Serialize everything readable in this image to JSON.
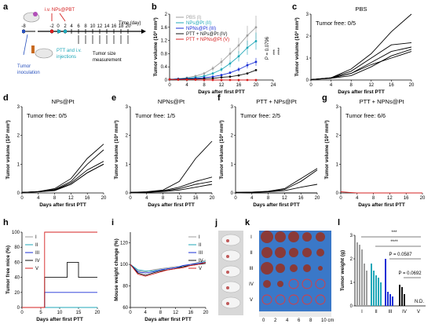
{
  "panel_labels": [
    "a",
    "b",
    "c",
    "d",
    "e",
    "f",
    "g",
    "h",
    "i",
    "j",
    "k",
    "l"
  ],
  "colors": {
    "PBS": "#9e9e9e",
    "NPs@Pt": "#1fa7b8",
    "NPNs@Pt": "#1a2fd6",
    "PTT+NPs@Pt": "#111111",
    "PTT+NPNs@Pt": "#d62020",
    "schedule_blue": "#2a52be",
    "schedule_red": "#d62020"
  },
  "schedule": {
    "time_label": "Time (day)",
    "inject_label": "i.v. NPs@PBT",
    "tumor_label": "Tumor\ninoculation",
    "ptt_label": "PTT and i.v.\ninjections",
    "measure_label": "Tumor size\nmeasurement",
    "ticks": [
      "-8",
      "-2",
      "0",
      "2",
      "4",
      "6",
      "8",
      "10",
      "12",
      "14",
      "16",
      "18",
      "20"
    ]
  },
  "chart_data": [
    {
      "panel": "b",
      "type": "line",
      "xlabel": "Days after first PTT",
      "ylabel": "Tumor volume (10³ mm³)",
      "xlim": [
        0,
        24
      ],
      "ylim": [
        0,
        2.0
      ],
      "xticks": [
        0,
        4,
        8,
        12,
        16,
        20,
        24
      ],
      "yticks": [
        0,
        0.4,
        0.8,
        1.2,
        1.6,
        2.0
      ],
      "annotations": [
        "P = 0.0796",
        "***",
        "****"
      ],
      "x": [
        0,
        2,
        4,
        6,
        8,
        10,
        12,
        14,
        16,
        18,
        20
      ],
      "series": [
        {
          "name": "PBS (I)",
          "color": "#9e9e9e",
          "values": [
            0.02,
            0.04,
            0.07,
            0.12,
            0.2,
            0.35,
            0.55,
            0.8,
            1.05,
            1.35,
            1.6
          ]
        },
        {
          "name": "NPs@Pt (II)",
          "color": "#1fa7b8",
          "values": [
            0.02,
            0.03,
            0.05,
            0.08,
            0.12,
            0.2,
            0.32,
            0.5,
            0.72,
            0.98,
            1.18
          ]
        },
        {
          "name": "NPNs@Pt (III)",
          "color": "#1a2fd6",
          "values": [
            0.02,
            0.03,
            0.04,
            0.05,
            0.07,
            0.1,
            0.15,
            0.22,
            0.32,
            0.45,
            0.55
          ]
        },
        {
          "name": "PTT + NPs@Pt (IV)",
          "color": "#111111",
          "values": [
            0.02,
            0.02,
            0.03,
            0.03,
            0.04,
            0.05,
            0.08,
            0.1,
            0.14,
            0.2,
            0.3
          ]
        },
        {
          "name": "PTT + NPNs@Pt (V)",
          "color": "#d62020",
          "values": [
            0.02,
            0.01,
            0.01,
            0.01,
            0.0,
            0.0,
            0.0,
            0.0,
            0.0,
            0.0,
            0.0
          ]
        }
      ]
    },
    {
      "panel": "c",
      "type": "line",
      "title": "PBS",
      "note": "Tumor free: 0/5",
      "xlabel": "Days after first PTT",
      "ylabel": "Tumor volume (10³ mm³)",
      "xlim": [
        0,
        20
      ],
      "ylim": [
        0,
        3
      ],
      "xticks": [
        0,
        4,
        8,
        12,
        16,
        20
      ],
      "yticks": [
        0,
        1,
        2,
        3
      ],
      "x": [
        0,
        4,
        8,
        12,
        16,
        20
      ],
      "series": [
        {
          "values": [
            0.02,
            0.1,
            0.5,
            1.2,
            2.2,
            3.0
          ]
        },
        {
          "values": [
            0.02,
            0.1,
            0.4,
            1.0,
            1.6,
            1.7
          ]
        },
        {
          "values": [
            0.02,
            0.1,
            0.3,
            0.8,
            1.3,
            1.5
          ]
        },
        {
          "values": [
            0.02,
            0.08,
            0.3,
            0.7,
            1.0,
            1.3
          ]
        },
        {
          "values": [
            0.02,
            0.08,
            0.2,
            0.6,
            1.1,
            1.4
          ]
        }
      ]
    },
    {
      "panel": "d",
      "type": "line",
      "title": "NPs@Pt",
      "note": "Tumor free: 0/5",
      "xlabel": "Days after first PTT",
      "ylabel": "Tumor volume (10³ mm³)",
      "xlim": [
        0,
        20
      ],
      "ylim": [
        0,
        3
      ],
      "xticks": [
        0,
        4,
        8,
        12,
        16,
        20
      ],
      "yticks": [
        0,
        1,
        2,
        3
      ],
      "x": [
        0,
        4,
        8,
        12,
        16,
        20
      ],
      "series": [
        {
          "values": [
            0.02,
            0.05,
            0.15,
            0.5,
            1.2,
            1.7
          ]
        },
        {
          "values": [
            0.02,
            0.05,
            0.12,
            0.4,
            1.0,
            1.5
          ]
        },
        {
          "values": [
            0.02,
            0.04,
            0.1,
            0.35,
            0.8,
            1.1
          ]
        },
        {
          "values": [
            0.02,
            0.04,
            0.1,
            0.3,
            0.7,
            1.0
          ]
        },
        {
          "values": [
            0.02,
            0.04,
            0.08,
            0.3,
            0.7,
            1.0
          ]
        }
      ]
    },
    {
      "panel": "e",
      "type": "line",
      "title": "NPNs@Pt",
      "note": "Tumor free: 1/5",
      "xlabel": "Days after first PTT",
      "ylabel": "Tumor volume (10³ mm³)",
      "xlim": [
        0,
        20
      ],
      "ylim": [
        0,
        3
      ],
      "xticks": [
        0,
        4,
        8,
        12,
        16,
        20
      ],
      "yticks": [
        0,
        1,
        2,
        3
      ],
      "x": [
        0,
        4,
        8,
        12,
        16,
        20
      ],
      "series": [
        {
          "values": [
            0.02,
            0.04,
            0.1,
            0.4,
            1.2,
            1.8
          ]
        },
        {
          "values": [
            0.02,
            0.03,
            0.08,
            0.2,
            0.4,
            0.55
          ]
        },
        {
          "values": [
            0.02,
            0.03,
            0.06,
            0.15,
            0.3,
            0.4
          ]
        },
        {
          "values": [
            0.02,
            0.02,
            0.05,
            0.1,
            0.2,
            0.3
          ]
        },
        {
          "values": [
            0.02,
            0.0,
            0.0,
            0.0,
            0.0,
            0.0
          ]
        }
      ]
    },
    {
      "panel": "f",
      "type": "line",
      "title": "PTT + NPs@Pt",
      "note": "Tumor free: 2/5",
      "xlabel": "Days after first PTT",
      "ylabel": "Tumor volume (10³ mm³)",
      "xlim": [
        0,
        20
      ],
      "ylim": [
        0,
        3
      ],
      "xticks": [
        0,
        4,
        8,
        12,
        16,
        20
      ],
      "yticks": [
        0,
        1,
        2,
        3
      ],
      "x": [
        0,
        4,
        8,
        12,
        16,
        20
      ],
      "series": [
        {
          "values": [
            0.02,
            0.03,
            0.06,
            0.15,
            0.5,
            0.85
          ]
        },
        {
          "values": [
            0.02,
            0.03,
            0.05,
            0.12,
            0.4,
            0.8
          ]
        },
        {
          "values": [
            0.02,
            0.02,
            0.04,
            0.08,
            0.2,
            0.3
          ]
        },
        {
          "values": [
            0.02,
            0.0,
            0.0,
            0.0,
            0.0,
            0.0
          ]
        },
        {
          "values": [
            0.02,
            0.0,
            0.0,
            0.0,
            0.0,
            0.0
          ]
        }
      ]
    },
    {
      "panel": "g",
      "type": "line",
      "title": "PTT + NPNs@Pt",
      "note": "Tumor free: 6/6",
      "xlabel": "Days after first PTT",
      "ylabel": "Tumor volume (10³ mm³)",
      "xlim": [
        0,
        20
      ],
      "ylim": [
        0,
        3
      ],
      "xticks": [
        0,
        4,
        8,
        12,
        16,
        20
      ],
      "yticks": [
        0,
        1,
        2,
        3
      ],
      "x": [
        0,
        2,
        4,
        8,
        12,
        16,
        20
      ],
      "series": [
        {
          "color": "#d62020",
          "values": [
            0.04,
            0.02,
            0.0,
            0.0,
            0.0,
            0.0,
            0.0
          ]
        }
      ]
    },
    {
      "panel": "h",
      "type": "line",
      "xlabel": "Days after first PTT",
      "ylabel": "Tumor free mice (%)",
      "xlim": [
        0,
        20
      ],
      "ylim": [
        0,
        100
      ],
      "xticks": [
        0,
        5,
        10,
        15,
        20
      ],
      "yticks": [
        0,
        20,
        40,
        60,
        80,
        100
      ],
      "series": [
        {
          "name": "I",
          "color": "#9e9e9e",
          "x": [
            0,
            20
          ],
          "values": [
            0,
            0
          ]
        },
        {
          "name": "II",
          "color": "#1fa7b8",
          "x": [
            0,
            20
          ],
          "values": [
            0,
            0
          ]
        },
        {
          "name": "III",
          "color": "#1a2fd6",
          "x": [
            0,
            6,
            6,
            20
          ],
          "values": [
            0,
            0,
            20,
            20
          ]
        },
        {
          "name": "IV",
          "color": "#111111",
          "x": [
            0,
            6,
            6,
            12,
            12,
            15,
            15,
            20
          ],
          "values": [
            0,
            0,
            40,
            40,
            60,
            60,
            40,
            40
          ]
        },
        {
          "name": "V",
          "color": "#d62020",
          "x": [
            0,
            6,
            6,
            20
          ],
          "values": [
            0,
            0,
            100,
            100
          ]
        }
      ]
    },
    {
      "panel": "i",
      "type": "line",
      "xlabel": "Days after first PTT",
      "ylabel": "Mouse weight change (%)",
      "xlim": [
        0,
        20
      ],
      "ylim": [
        60,
        130
      ],
      "xticks": [
        0,
        4,
        8,
        12,
        16,
        20
      ],
      "yticks": [
        60,
        80,
        100,
        120
      ],
      "x": [
        0,
        2,
        4,
        6,
        8,
        10,
        12,
        14,
        16,
        18,
        20
      ],
      "series": [
        {
          "name": "I",
          "color": "#9e9e9e",
          "values": [
            100,
            94,
            93,
            95,
            96,
            97,
            98,
            98,
            100,
            102,
            104
          ]
        },
        {
          "name": "II",
          "color": "#1fa7b8",
          "values": [
            100,
            95,
            94,
            94,
            95,
            96,
            97,
            98,
            99,
            101,
            103
          ]
        },
        {
          "name": "III",
          "color": "#1a2fd6",
          "values": [
            100,
            93,
            92,
            93,
            95,
            96,
            97,
            99,
            100,
            101,
            102
          ]
        },
        {
          "name": "IV",
          "color": "#111111",
          "values": [
            100,
            92,
            90,
            92,
            94,
            95,
            96,
            98,
            99,
            100,
            101
          ]
        },
        {
          "name": "V",
          "color": "#d62020",
          "values": [
            100,
            91,
            89,
            91,
            93,
            95,
            96,
            97,
            99,
            100,
            102
          ]
        }
      ]
    },
    {
      "panel": "l",
      "type": "bar",
      "xlabel": "",
      "ylabel": "Tumor weight (g)",
      "ylim": [
        0,
        3
      ],
      "yticks": [
        0,
        1,
        2,
        3
      ],
      "categories": [
        "I",
        "II",
        "III",
        "IV",
        "V"
      ],
      "annotations": [
        "***",
        "****",
        "P = 0.0587",
        "P = 0.0692",
        "N.D."
      ],
      "series": [
        {
          "name": "I",
          "color": "#9e9e9e",
          "values": [
            2.7,
            2.6,
            2.4,
            1.8,
            1.5
          ]
        },
        {
          "name": "II",
          "color": "#1fa7b8",
          "values": [
            1.8,
            1.5,
            1.3,
            1.2,
            1.0
          ]
        },
        {
          "name": "III",
          "color": "#1a2fd6",
          "values": [
            2.0,
            0.6,
            0.5,
            0.4,
            0.0
          ]
        },
        {
          "name": "IV",
          "color": "#111111",
          "values": [
            0.9,
            0.8,
            0.5,
            0.0,
            0.0
          ]
        },
        {
          "name": "V",
          "color": "#d62020",
          "values": [
            0,
            0,
            0,
            0,
            0
          ]
        }
      ]
    }
  ],
  "photos": {
    "k_rows": [
      "I",
      "II",
      "III",
      "IV",
      "V"
    ],
    "k_ruler": [
      "0",
      "2",
      "4",
      "6",
      "8",
      "10 cm"
    ]
  }
}
